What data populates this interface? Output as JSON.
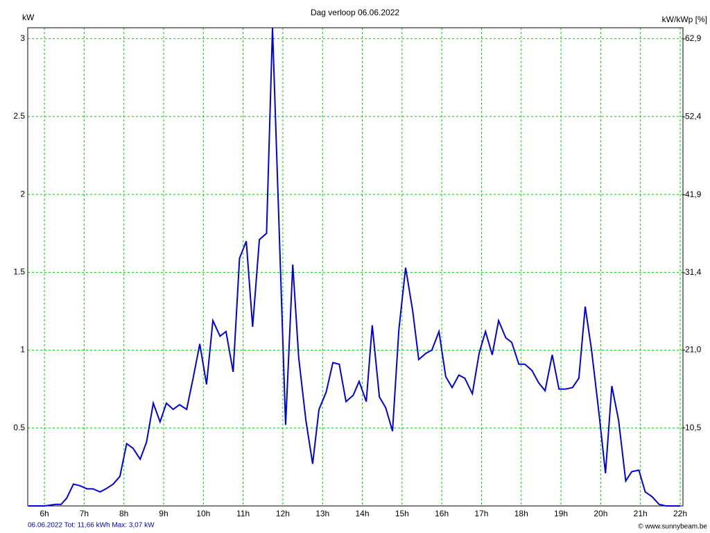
{
  "chart_data": {
    "type": "line",
    "title": "Dag  verloop 06.06.2022",
    "y_label": "kW",
    "y2_label": "kW/kWp [%]",
    "footer_left": "06.06.2022 Tot: 11,66 kWh Max: 3,07 kW",
    "footer_right": "© www.sunnybeam.be",
    "xlim": [
      5.58,
      22.07
    ],
    "xticks": [
      {
        "value": 6,
        "label": "6h"
      },
      {
        "value": 7,
        "label": "7h"
      },
      {
        "value": 8,
        "label": "8h"
      },
      {
        "value": 9,
        "label": "9h"
      },
      {
        "value": 10,
        "label": "10h"
      },
      {
        "value": 11,
        "label": "11h"
      },
      {
        "value": 12,
        "label": "12h"
      },
      {
        "value": 13,
        "label": "13h"
      },
      {
        "value": 14,
        "label": "14h"
      },
      {
        "value": 15,
        "label": "15h"
      },
      {
        "value": 16,
        "label": "16h"
      },
      {
        "value": 17,
        "label": "17h"
      },
      {
        "value": 18,
        "label": "18h"
      },
      {
        "value": 19,
        "label": "19h"
      },
      {
        "value": 20,
        "label": "20h"
      },
      {
        "value": 21,
        "label": "21h"
      },
      {
        "value": 22,
        "label": "22h"
      }
    ],
    "ylim": [
      0,
      3.07
    ],
    "yticks": [
      0.5,
      1,
      1.5,
      2,
      2.5,
      3
    ],
    "y2lim": [
      0,
      64.4
    ],
    "y2ticks": [
      {
        "value": 10.5,
        "label": "10,5"
      },
      {
        "value": 21.0,
        "label": "21,0"
      },
      {
        "value": 31.4,
        "label": "31,4"
      },
      {
        "value": 41.9,
        "label": "41,9"
      },
      {
        "value": 52.4,
        "label": "52,4"
      },
      {
        "value": 62.9,
        "label": "62,9"
      }
    ],
    "grid": true,
    "color": "#0000dd",
    "x": [
      5.6,
      6.0,
      6.28,
      6.42,
      6.56,
      6.73,
      6.89,
      7.07,
      7.22,
      7.4,
      7.55,
      7.73,
      7.9,
      8.07,
      8.23,
      8.41,
      8.57,
      8.74,
      8.91,
      9.07,
      9.24,
      9.4,
      9.58,
      9.75,
      9.91,
      10.08,
      10.24,
      10.42,
      10.57,
      10.75,
      10.91,
      11.08,
      11.24,
      11.41,
      11.59,
      11.74,
      12.07,
      12.25,
      12.4,
      12.58,
      12.75,
      12.91,
      13.09,
      13.26,
      13.42,
      13.59,
      13.77,
      13.92,
      14.1,
      14.25,
      14.43,
      14.59,
      14.76,
      14.92,
      15.09,
      15.27,
      15.42,
      15.6,
      15.75,
      15.93,
      16.1,
      16.26,
      16.43,
      16.58,
      16.77,
      16.94,
      17.1,
      17.27,
      17.43,
      17.61,
      17.76,
      17.94,
      18.09,
      18.27,
      18.44,
      18.6,
      18.78,
      18.95,
      19.11,
      19.29,
      19.45,
      19.61,
      19.77,
      19.95,
      20.12,
      20.28,
      20.45,
      20.63,
      20.78,
      20.96,
      21.12,
      21.29,
      21.47,
      21.64,
      22.0
    ],
    "values": [
      0,
      0,
      0.01,
      0.01,
      0.05,
      0.14,
      0.13,
      0.11,
      0.11,
      0.09,
      0.11,
      0.14,
      0.19,
      0.4,
      0.37,
      0.3,
      0.41,
      0.66,
      0.54,
      0.66,
      0.62,
      0.65,
      0.62,
      0.83,
      1.04,
      0.78,
      1.19,
      1.09,
      1.12,
      0.86,
      1.59,
      1.7,
      1.15,
      1.71,
      1.75,
      3.07,
      0.52,
      1.55,
      0.95,
      0.55,
      0.27,
      0.62,
      0.73,
      0.92,
      0.91,
      0.67,
      0.71,
      0.8,
      0.67,
      1.16,
      0.7,
      0.63,
      0.48,
      1.13,
      1.53,
      1.25,
      0.94,
      0.98,
      1.0,
      1.12,
      0.83,
      0.76,
      0.84,
      0.82,
      0.72,
      0.98,
      1.12,
      0.97,
      1.19,
      1.08,
      1.05,
      0.91,
      0.91,
      0.87,
      0.79,
      0.74,
      0.97,
      0.75,
      0.75,
      0.76,
      0.82,
      1.28,
      1.0,
      0.61,
      0.21,
      0.77,
      0.55,
      0.16,
      0.22,
      0.23,
      0.09,
      0.06,
      0.01,
      0,
      0
    ]
  }
}
